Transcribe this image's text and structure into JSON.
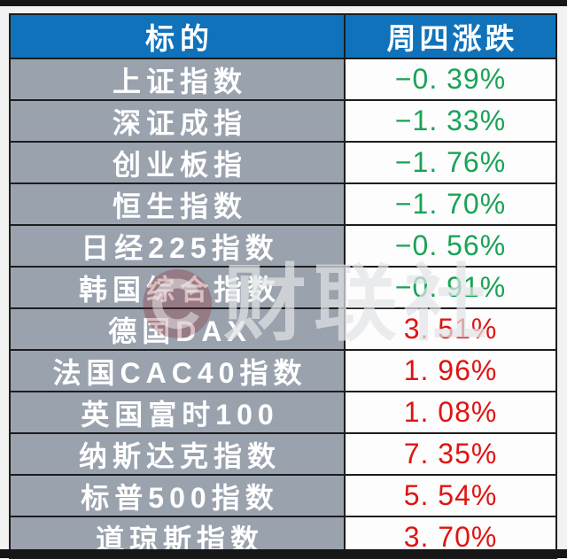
{
  "chart_data": {
    "type": "table",
    "title": "",
    "columns": [
      "标的",
      "周四涨跌"
    ],
    "rows": [
      {
        "index": "上证指数",
        "change_pct": -0.39
      },
      {
        "index": "深证成指",
        "change_pct": -1.33
      },
      {
        "index": "创业板指",
        "change_pct": -1.76
      },
      {
        "index": "恒生指数",
        "change_pct": -1.7
      },
      {
        "index": "日经225指数",
        "change_pct": -0.56
      },
      {
        "index": "韩国综合指数",
        "change_pct": -0.91
      },
      {
        "index": "德国DAX",
        "change_pct": 3.51
      },
      {
        "index": "法国CAC40指数",
        "change_pct": 1.96
      },
      {
        "index": "英国富时100",
        "change_pct": 1.08
      },
      {
        "index": "纳斯达克指数",
        "change_pct": 7.35
      },
      {
        "index": "标普500指数",
        "change_pct": 5.54
      },
      {
        "index": "道琼斯指数",
        "change_pct": 3.7
      }
    ],
    "legend_position": "none",
    "notes": "Negative changes shown in green, positive in red (Chinese market color convention)"
  },
  "table": {
    "header": {
      "target_label": "标的",
      "change_label": "周四涨跌"
    },
    "rows": [
      {
        "label": "上证指数",
        "value": "−0. 39%",
        "direction": "down"
      },
      {
        "label": "深证成指",
        "value": "−1. 33%",
        "direction": "down"
      },
      {
        "label": "创业板指",
        "value": "−1. 76%",
        "direction": "down"
      },
      {
        "label": "恒生指数",
        "value": "−1. 70%",
        "direction": "down"
      },
      {
        "label": "日经225指数",
        "value": "−0. 56%",
        "direction": "down"
      },
      {
        "label": "韩国综合指数",
        "value": "−0. 91%",
        "direction": "down"
      },
      {
        "label": "德国DAX",
        "value": "3. 51%",
        "direction": "up"
      },
      {
        "label": "法国CAC40指数",
        "value": "1. 96%",
        "direction": "up"
      },
      {
        "label": "英国富时100",
        "value": "1. 08%",
        "direction": "up"
      },
      {
        "label": "纳斯达克指数",
        "value": "7. 35%",
        "direction": "up"
      },
      {
        "label": "标普500指数",
        "value": "5. 54%",
        "direction": "up"
      },
      {
        "label": "道琼斯指数",
        "value": "3. 70%",
        "direction": "up"
      }
    ]
  },
  "watermark": {
    "text": "财联社"
  },
  "colors": {
    "header_bg": "#0f72bb",
    "label_bg": "#9aa2ae",
    "value_bg": "#fdfdfd",
    "grid_line": "#1d1d1d",
    "down_green": "#19a356",
    "up_red": "#df1413",
    "frame_bar": "#161616"
  }
}
